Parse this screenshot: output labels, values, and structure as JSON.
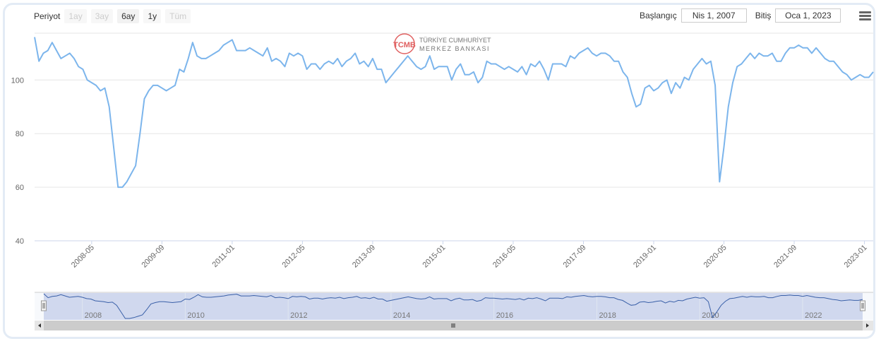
{
  "toolbar": {
    "period_label": "Periyot",
    "buttons": [
      "1ay",
      "3ay",
      "6ay",
      "1y",
      "Tüm"
    ],
    "start_label": "Başlangıç",
    "start_value": "Nis 1, 2007",
    "end_label": "Bitiş",
    "end_value": "Oca 1, 2023"
  },
  "watermark": {
    "line1": "TÜRKİYE CUMHURİYET",
    "line2": "MERKEZ BANKASI",
    "logo_letters": "TCMB"
  },
  "chart_data": {
    "type": "line",
    "ylim": [
      40,
      118
    ],
    "yticks": [
      40,
      60,
      80,
      100
    ],
    "x_tick_labels": [
      "2008-05",
      "2009-09",
      "2011-01",
      "2012-05",
      "2013-09",
      "2015-01",
      "2016-05",
      "2017-09",
      "2019-01",
      "2020-05",
      "2021-09",
      "2023-01"
    ],
    "navigator_labels": [
      "2008",
      "2010",
      "2012",
      "2014",
      "2016",
      "2018",
      "2020",
      "2022"
    ],
    "series": [
      {
        "color": "#7cb5ec",
        "start": "2007-04",
        "values": [
          116,
          107,
          110,
          111,
          114,
          111,
          108,
          109,
          110,
          108,
          105,
          104,
          100,
          99,
          98,
          96,
          97,
          90,
          75,
          60,
          60,
          62,
          65,
          68,
          80,
          93,
          96,
          98,
          98,
          97,
          96,
          97,
          98,
          104,
          103,
          108,
          114,
          109,
          108,
          108,
          109,
          110,
          111,
          113,
          114,
          115,
          111,
          111,
          111,
          112,
          111,
          110,
          109,
          112,
          107,
          108,
          107,
          105,
          110,
          109,
          110,
          109,
          104,
          106,
          106,
          104,
          106,
          107,
          106,
          108,
          105,
          107,
          108,
          110,
          106,
          107,
          105,
          108,
          104,
          104,
          99,
          101,
          103,
          105,
          107,
          109,
          107,
          105,
          104,
          105,
          109,
          104,
          105,
          105,
          105,
          100,
          104,
          106,
          102,
          102,
          103,
          99,
          101,
          107,
          106,
          106,
          105,
          104,
          105,
          104,
          103,
          105,
          102,
          106,
          105,
          107,
          104,
          100,
          106,
          106,
          106,
          105,
          109,
          108,
          110,
          111,
          112,
          110,
          109,
          110,
          110,
          109,
          107,
          107,
          103,
          101,
          95,
          90,
          91,
          97,
          98,
          96,
          97,
          99,
          100,
          95,
          99,
          97,
          101,
          100,
          104,
          106,
          108,
          106,
          107,
          98,
          62,
          75,
          90,
          99,
          105,
          106,
          108,
          110,
          108,
          110,
          109,
          109,
          110,
          107,
          107,
          110,
          112,
          112,
          113,
          112,
          112,
          110,
          112,
          110,
          108,
          107,
          107,
          105,
          103,
          102,
          100,
          101,
          102,
          101,
          101,
          103
        ]
      }
    ]
  }
}
